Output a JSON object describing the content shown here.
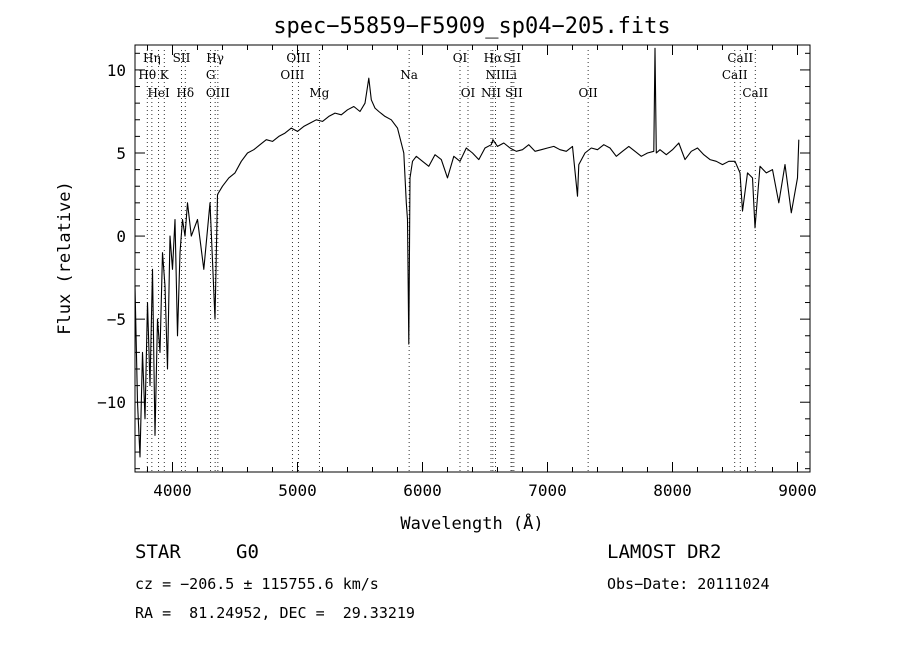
{
  "chart_data": {
    "type": "line",
    "title": "spec−55859−F5909_sp04−205.fits",
    "xlabel": "Wavelength (Å)",
    "ylabel": "Flux (relative)",
    "xlim": [
      3700,
      9100
    ],
    "ylim": [
      -14.2,
      11.5
    ],
    "x_ticks": [
      4000,
      5000,
      6000,
      7000,
      8000,
      9000
    ],
    "y_ticks": [
      -10,
      -5,
      0,
      5,
      10
    ],
    "grid": false,
    "series": [
      {
        "x": [
          3700,
          3720,
          3740,
          3760,
          3780,
          3800,
          3820,
          3840,
          3860,
          3880,
          3900,
          3920,
          3940,
          3960,
          3980,
          4000,
          4020,
          4040,
          4060,
          4080,
          4100,
          4120,
          4150,
          4200,
          4250,
          4300,
          4340,
          4360,
          4400,
          4450,
          4500,
          4550,
          4600,
          4650,
          4700,
          4750,
          4800,
          4850,
          4900,
          4950,
          5000,
          5050,
          5100,
          5150,
          5200,
          5250,
          5300,
          5350,
          5400,
          5450,
          5500,
          5540,
          5570,
          5590,
          5620,
          5650,
          5700,
          5750,
          5800,
          5850,
          5870,
          5880,
          5890,
          5900,
          5920,
          5950,
          6000,
          6050,
          6100,
          6150,
          6200,
          6250,
          6300,
          6350,
          6400,
          6450,
          6500,
          6550,
          6563,
          6600,
          6650,
          6700,
          6750,
          6800,
          6850,
          6900,
          6950,
          7000,
          7050,
          7100,
          7150,
          7200,
          7240,
          7250,
          7300,
          7350,
          7400,
          7450,
          7500,
          7550,
          7600,
          7650,
          7700,
          7750,
          7800,
          7850,
          7860,
          7870,
          7900,
          7950,
          8000,
          8050,
          8100,
          8150,
          8200,
          8250,
          8300,
          8350,
          8400,
          8450,
          8500,
          8540,
          8560,
          8600,
          8640,
          8660,
          8700,
          8750,
          8800,
          8850,
          8900,
          8950,
          9000,
          9010
        ],
        "y": [
          -3,
          -10,
          -13.3,
          -7,
          -11,
          -4,
          -9,
          -2,
          -12,
          -5,
          -7,
          -1,
          -3,
          -8,
          0,
          -2,
          1,
          -6,
          -1,
          1,
          0,
          2,
          0,
          1,
          -2,
          2,
          -5,
          2.5,
          3,
          3.5,
          3.8,
          4.5,
          5,
          5.2,
          5.5,
          5.8,
          5.7,
          6,
          6.2,
          6.5,
          6.3,
          6.6,
          6.8,
          7,
          6.9,
          7.2,
          7.4,
          7.3,
          7.6,
          7.8,
          7.5,
          8,
          9.5,
          8.2,
          7.7,
          7.5,
          7.2,
          7,
          6.5,
          5,
          2,
          1,
          -6.5,
          3.5,
          4.5,
          4.8,
          4.5,
          4.2,
          4.9,
          4.6,
          3.5,
          4.8,
          4.5,
          5.3,
          5,
          4.6,
          5.3,
          5.5,
          5.8,
          5.4,
          5.6,
          5.3,
          5.1,
          5.2,
          5.5,
          5.1,
          5.2,
          5.3,
          5.4,
          5.2,
          5.1,
          5.4,
          2.4,
          4.3,
          5,
          5.3,
          5.2,
          5.5,
          5.3,
          4.8,
          5.1,
          5.4,
          5.1,
          4.8,
          5,
          5.1,
          11.3,
          5,
          5.2,
          4.9,
          5.2,
          5.6,
          4.6,
          5.1,
          5.3,
          4.9,
          4.6,
          4.5,
          4.3,
          4.5,
          4.5,
          3.8,
          1.5,
          3.8,
          3.5,
          0.5,
          4.2,
          3.8,
          4,
          2,
          4.3,
          1.4,
          3.5,
          5.8
        ]
      }
    ],
    "line_annotations": [
      {
        "label": "Hη",
        "x": 3835,
        "row": 1
      },
      {
        "label": "Hθ",
        "x": 3798,
        "row": 2
      },
      {
        "label": "HeI",
        "x": 3889,
        "row": 3
      },
      {
        "label": "K",
        "x": 3934,
        "row": 2
      },
      {
        "label": "SII",
        "x": 4072,
        "row": 1
      },
      {
        "label": "Hδ",
        "x": 4102,
        "row": 3
      },
      {
        "label": "Hγ",
        "x": 4341,
        "row": 1
      },
      {
        "label": "G",
        "x": 4305,
        "row": 2
      },
      {
        "label": "OIII",
        "x": 4363,
        "row": 3
      },
      {
        "label": "OIII",
        "x": 5007,
        "row": 1
      },
      {
        "label": "OIII",
        "x": 4959,
        "row": 2
      },
      {
        "label": "Mg",
        "x": 5175,
        "row": 3
      },
      {
        "label": "Na",
        "x": 5893,
        "row": 2
      },
      {
        "label": "OI",
        "x": 6300,
        "row": 1
      },
      {
        "label": "OI",
        "x": 6364,
        "row": 3
      },
      {
        "label": "Hα",
        "x": 6563,
        "row": 1
      },
      {
        "label": "SII",
        "x": 6717,
        "row": 1
      },
      {
        "label": "NII",
        "x": 6584,
        "row": 2
      },
      {
        "label": "Li",
        "x": 6708,
        "row": 2
      },
      {
        "label": "NII",
        "x": 6548,
        "row": 3
      },
      {
        "label": "SII",
        "x": 6731,
        "row": 3
      },
      {
        "label": "OII",
        "x": 7325,
        "row": 3
      },
      {
        "label": "CaII",
        "x": 8542,
        "row": 1
      },
      {
        "label": "CaII",
        "x": 8498,
        "row": 2
      },
      {
        "label": "CaII",
        "x": 8662,
        "row": 3
      }
    ]
  },
  "info": {
    "object_class": "STAR",
    "subclass": "G0",
    "survey": "LAMOST DR2",
    "redshift_line": "cz = −206.5 ± 115755.6 km/s",
    "obs_date_line": "Obs−Date: 20111024",
    "coords_line": "RA =  81.24952, DEC =  29.33219"
  }
}
